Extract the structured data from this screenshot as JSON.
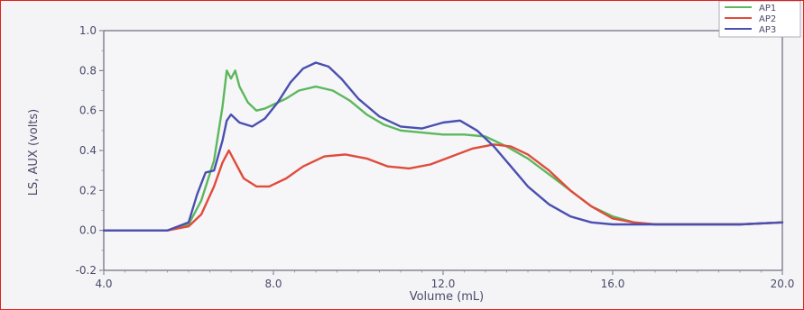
{
  "chart_data": {
    "type": "line",
    "title": "",
    "xlabel": "Volume (mL)",
    "ylabel": "LS, AUX (volts)",
    "xlim": [
      4.0,
      20.0
    ],
    "ylim": [
      -0.2,
      1.0
    ],
    "x_ticks": [
      4.0,
      8.0,
      12.0,
      16.0,
      20.0
    ],
    "x_tick_labels": [
      "4.0",
      "8.0",
      "12.0",
      "16.0",
      "20.0"
    ],
    "y_ticks": [
      -0.2,
      0.0,
      0.2,
      0.4,
      0.6,
      0.8,
      1.0
    ],
    "y_tick_labels": [
      "-0.2",
      "0.0",
      "0.2",
      "0.4",
      "0.6",
      "0.8",
      "1.0"
    ],
    "legend_position": "top-right",
    "grid": false,
    "series": [
      {
        "name": "AP1",
        "color": "#5cb85c",
        "x": [
          4.0,
          5.5,
          6.0,
          6.3,
          6.6,
          6.8,
          6.9,
          7.0,
          7.1,
          7.2,
          7.4,
          7.6,
          7.8,
          8.0,
          8.3,
          8.6,
          9.0,
          9.4,
          9.8,
          10.2,
          10.6,
          11.0,
          11.5,
          12.0,
          12.5,
          13.0,
          13.5,
          14.0,
          14.5,
          15.0,
          15.5,
          16.0,
          16.5,
          17.0,
          18.0,
          19.0,
          20.0
        ],
        "y": [
          0.0,
          0.0,
          0.03,
          0.15,
          0.35,
          0.62,
          0.8,
          0.76,
          0.8,
          0.72,
          0.64,
          0.6,
          0.61,
          0.63,
          0.66,
          0.7,
          0.72,
          0.7,
          0.65,
          0.58,
          0.53,
          0.5,
          0.49,
          0.48,
          0.48,
          0.47,
          0.42,
          0.36,
          0.28,
          0.2,
          0.12,
          0.07,
          0.04,
          0.03,
          0.03,
          0.03,
          0.04
        ]
      },
      {
        "name": "AP2",
        "color": "#e04b3c",
        "x": [
          4.0,
          5.5,
          6.0,
          6.3,
          6.6,
          6.8,
          6.95,
          7.1,
          7.3,
          7.6,
          7.9,
          8.3,
          8.7,
          9.2,
          9.7,
          10.2,
          10.7,
          11.2,
          11.7,
          12.2,
          12.7,
          13.2,
          13.6,
          14.0,
          14.5,
          15.0,
          15.5,
          16.0,
          16.5,
          17.0,
          18.0,
          19.0,
          20.0
        ],
        "y": [
          0.0,
          0.0,
          0.02,
          0.08,
          0.22,
          0.34,
          0.4,
          0.34,
          0.26,
          0.22,
          0.22,
          0.26,
          0.32,
          0.37,
          0.38,
          0.36,
          0.32,
          0.31,
          0.33,
          0.37,
          0.41,
          0.43,
          0.42,
          0.38,
          0.3,
          0.2,
          0.12,
          0.06,
          0.04,
          0.03,
          0.03,
          0.03,
          0.04
        ]
      },
      {
        "name": "AP3",
        "color": "#4a4fb0",
        "x": [
          4.0,
          5.5,
          6.0,
          6.2,
          6.4,
          6.6,
          6.8,
          6.9,
          7.0,
          7.2,
          7.5,
          7.8,
          8.1,
          8.4,
          8.7,
          9.0,
          9.3,
          9.6,
          10.0,
          10.5,
          11.0,
          11.5,
          12.0,
          12.4,
          12.8,
          13.2,
          13.6,
          14.0,
          14.5,
          15.0,
          15.5,
          16.0,
          16.5,
          17.0,
          18.0,
          19.0,
          20.0
        ],
        "y": [
          0.0,
          0.0,
          0.04,
          0.18,
          0.29,
          0.3,
          0.45,
          0.55,
          0.58,
          0.54,
          0.52,
          0.56,
          0.64,
          0.74,
          0.81,
          0.84,
          0.82,
          0.76,
          0.66,
          0.57,
          0.52,
          0.51,
          0.54,
          0.55,
          0.5,
          0.42,
          0.32,
          0.22,
          0.13,
          0.07,
          0.04,
          0.03,
          0.03,
          0.03,
          0.03,
          0.03,
          0.04
        ]
      }
    ]
  }
}
